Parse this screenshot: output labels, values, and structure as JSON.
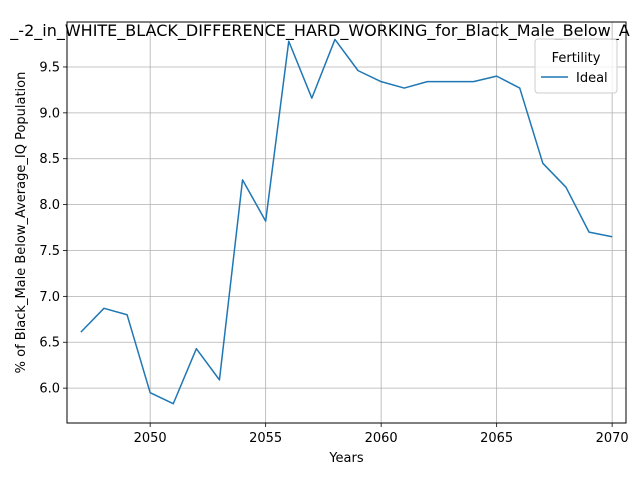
{
  "chart_data": {
    "type": "line",
    "title": "_-2_in_WHITE_BLACK_DIFFERENCE_HARD_WORKING_for_Black_Male_Below_A",
    "xlabel": "Years",
    "ylabel": "% of Black_Male Below_Average_IQ Population",
    "xlim": [
      2046.4,
      2070.6
    ],
    "ylim": [
      5.62,
      9.99
    ],
    "x_ticks": [
      2050,
      2055,
      2060,
      2065,
      2070
    ],
    "y_ticks": [
      6.0,
      6.5,
      7.0,
      7.5,
      8.0,
      8.5,
      9.0,
      9.5
    ],
    "x_tick_labels": [
      "2050",
      "2055",
      "2060",
      "2065",
      "2070"
    ],
    "y_tick_labels": [
      "6.0",
      "6.5",
      "7.0",
      "7.5",
      "8.0",
      "8.5",
      "9.0",
      "9.5"
    ],
    "grid": true,
    "legend": {
      "title": "Fertility",
      "placement": "top-right"
    },
    "series": [
      {
        "name": "Ideal",
        "color": "#1f77b4",
        "x": [
          2047,
          2048,
          2049,
          2050,
          2051,
          2052,
          2053,
          2054,
          2055,
          2056,
          2057,
          2058,
          2059,
          2060,
          2061,
          2062,
          2063,
          2064,
          2065,
          2066,
          2067,
          2068,
          2069,
          2070
        ],
        "y": [
          6.61,
          6.87,
          6.8,
          5.95,
          5.83,
          6.43,
          6.09,
          8.27,
          7.82,
          9.78,
          9.16,
          9.8,
          9.46,
          9.34,
          9.27,
          9.34,
          9.34,
          9.34,
          9.4,
          9.27,
          8.45,
          8.19,
          7.7,
          7.65
        ]
      }
    ]
  }
}
